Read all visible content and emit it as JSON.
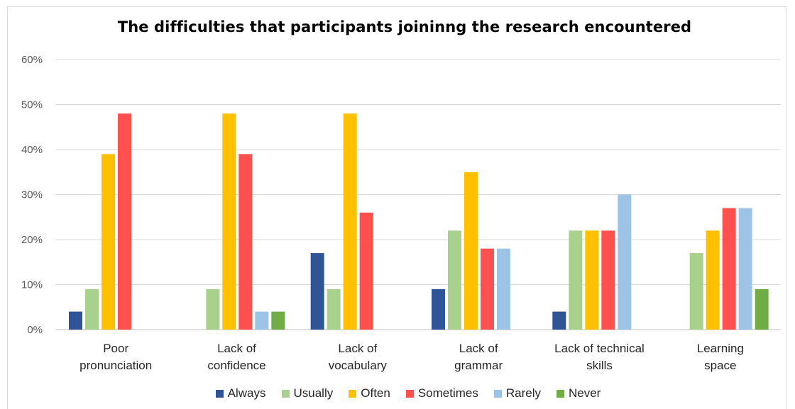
{
  "chart_data": {
    "type": "bar",
    "title": "The difficulties that participants joininng the research encountered",
    "xlabel": "",
    "ylabel": "",
    "ylim": [
      0,
      60
    ],
    "yticks": [
      "0%",
      "10%",
      "20%",
      "30%",
      "40%",
      "50%",
      "60%"
    ],
    "grid": true,
    "legend_position": "bottom",
    "categories": [
      [
        "Poor",
        "pronunciation"
      ],
      [
        "Lack of",
        "confidence"
      ],
      [
        "Lack of",
        "vocabulary"
      ],
      [
        "Lack of",
        "grammar"
      ],
      [
        "Lack of technical",
        "skills"
      ],
      [
        "Learning",
        "space"
      ]
    ],
    "series": [
      {
        "name": "Always",
        "color": "#2f5597",
        "values": [
          4,
          0,
          17,
          9,
          4,
          0
        ]
      },
      {
        "name": "Usually",
        "color": "#a9d18e",
        "values": [
          9,
          9,
          9,
          22,
          22,
          17
        ]
      },
      {
        "name": "Often",
        "color": "#ffc000",
        "values": [
          39,
          48,
          48,
          35,
          22,
          22
        ]
      },
      {
        "name": "Sometimes",
        "color": "#ff5050",
        "values": [
          48,
          39,
          26,
          18,
          22,
          27
        ]
      },
      {
        "name": "Rarely",
        "color": "#9dc3e6",
        "values": [
          0,
          4,
          0,
          18,
          30,
          27
        ]
      },
      {
        "name": "Never",
        "color": "#70ad47",
        "values": [
          0,
          4,
          0,
          0,
          0,
          9
        ]
      }
    ]
  }
}
